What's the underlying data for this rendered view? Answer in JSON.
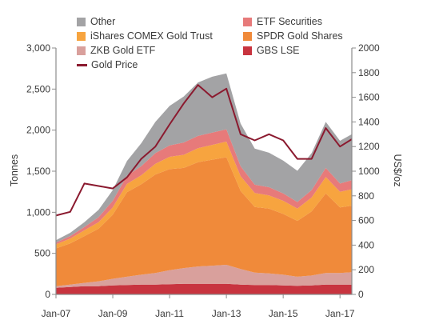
{
  "chart_data": {
    "type": "area",
    "stacked": true,
    "secondary_series_type": "line",
    "x_tick_labels": [
      "Jan-07",
      "Jan-09",
      "Jan-11",
      "Jan-13",
      "Jan-15",
      "Jan-17"
    ],
    "x_range": [
      "2007-01",
      "2017-06"
    ],
    "ylabel": "Tonnes",
    "y2label": "US$/oz",
    "ylim": [
      0,
      3000
    ],
    "y2lim": [
      0,
      2000
    ],
    "y_ticks": [
      "0",
      "500",
      "1,000",
      "1,500",
      "2,000",
      "2,500",
      "3,000"
    ],
    "y2_ticks": [
      "0",
      "200",
      "400",
      "600",
      "800",
      "1000",
      "1200",
      "1400",
      "1600",
      "1800",
      "2000"
    ],
    "grid": false,
    "legend_position": "top",
    "x": [
      "2007-01",
      "2007-07",
      "2008-01",
      "2008-07",
      "2009-01",
      "2009-07",
      "2010-01",
      "2010-07",
      "2011-01",
      "2011-07",
      "2012-01",
      "2012-07",
      "2013-01",
      "2013-07",
      "2014-01",
      "2014-07",
      "2015-01",
      "2015-07",
      "2016-01",
      "2016-07",
      "2017-01",
      "2017-06"
    ],
    "series": [
      {
        "name": "GBS LSE",
        "color": "#c8343f",
        "values": [
          80,
          90,
          100,
          100,
          110,
          115,
          120,
          120,
          125,
          130,
          130,
          130,
          130,
          120,
          115,
          115,
          110,
          105,
          110,
          120,
          120,
          120
        ]
      },
      {
        "name": "ZKB Gold ETF",
        "color": "#d9a09c",
        "values": [
          20,
          30,
          40,
          60,
          80,
          100,
          120,
          140,
          170,
          190,
          210,
          220,
          230,
          190,
          150,
          140,
          130,
          110,
          120,
          140,
          140,
          150
        ]
      },
      {
        "name": "SPDR Gold Shares",
        "color": "#f08a3a",
        "values": [
          460,
          500,
          570,
          640,
          780,
          1030,
          1100,
          1200,
          1230,
          1220,
          1270,
          1290,
          1310,
          950,
          800,
          790,
          740,
          680,
          780,
          970,
          800,
          810
        ]
      },
      {
        "name": "iShares COMEX Gold Trust",
        "color": "#f7a43f",
        "values": [
          50,
          60,
          70,
          80,
          90,
          100,
          110,
          130,
          150,
          160,
          170,
          180,
          190,
          180,
          170,
          160,
          160,
          150,
          170,
          200,
          190,
          200
        ]
      },
      {
        "name": "ETF Securities",
        "color": "#e77a7a",
        "values": [
          20,
          30,
          40,
          60,
          80,
          100,
          110,
          130,
          140,
          150,
          150,
          150,
          150,
          120,
          100,
          100,
          90,
          80,
          90,
          110,
          100,
          110
        ]
      },
      {
        "name": "Other",
        "color": "#a3a3a5",
        "values": [
          30,
          40,
          60,
          90,
          130,
          180,
          280,
          380,
          480,
          560,
          650,
          680,
          680,
          520,
          440,
          420,
          400,
          380,
          450,
          560,
          520,
          560
        ]
      }
    ],
    "line_series": {
      "name": "Gold Price",
      "axis": "right",
      "color": "#8b1a2f",
      "values": [
        640,
        670,
        900,
        880,
        860,
        950,
        1100,
        1200,
        1380,
        1550,
        1700,
        1600,
        1670,
        1300,
        1250,
        1300,
        1250,
        1100,
        1100,
        1350,
        1200,
        1260
      ]
    }
  },
  "legend": [
    {
      "label": "Other",
      "color": "#a3a3a5",
      "kind": "box"
    },
    {
      "label": "ETF Securities",
      "color": "#e77a7a",
      "kind": "box"
    },
    {
      "label": "iShares COMEX Gold Trust",
      "color": "#f7a43f",
      "kind": "box"
    },
    {
      "label": "SPDR Gold Shares",
      "color": "#f08a3a",
      "kind": "box"
    },
    {
      "label": "ZKB Gold ETF",
      "color": "#d9a09c",
      "kind": "box"
    },
    {
      "label": "GBS LSE",
      "color": "#c8343f",
      "kind": "box"
    },
    {
      "label": "Gold Price",
      "color": "#8b1a2f",
      "kind": "line"
    }
  ]
}
